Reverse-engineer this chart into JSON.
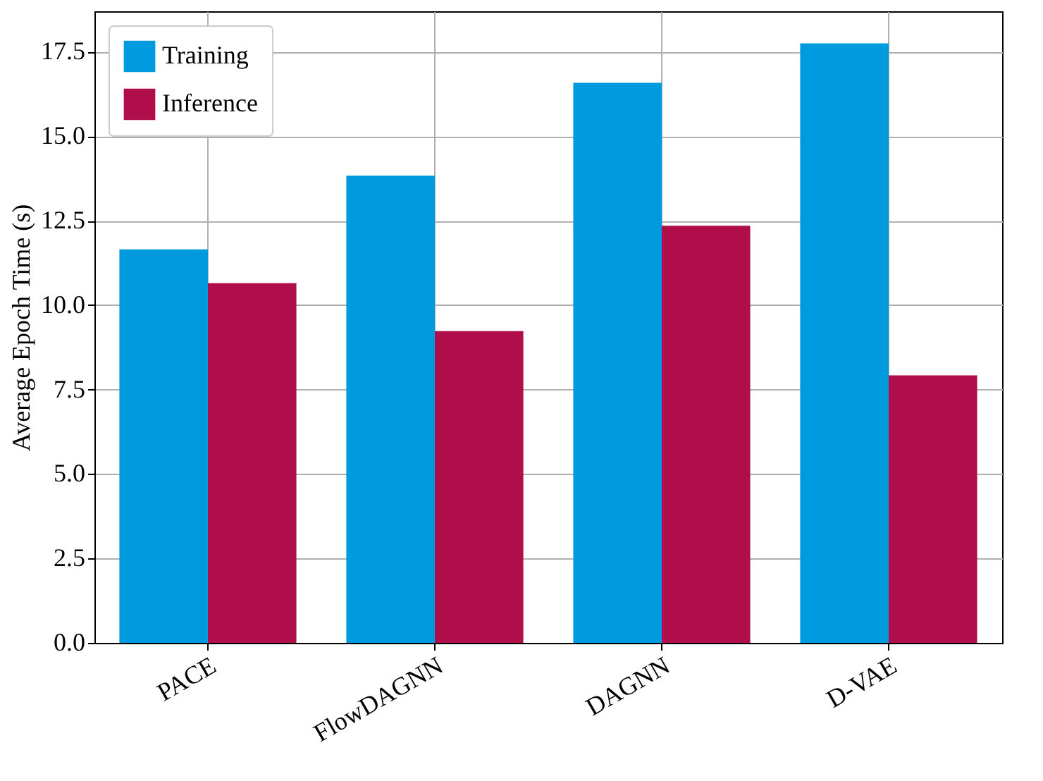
{
  "chart_data": {
    "type": "bar",
    "ylabel": "Average Epoch Time (s)",
    "categories": [
      "PACE",
      "FlowDAGNN",
      "DAGNN",
      "D-VAE"
    ],
    "series": [
      {
        "name": "Training",
        "color": "#009ade",
        "values": [
          11.65,
          13.83,
          16.58,
          17.75
        ]
      },
      {
        "name": "Inference",
        "color": "#af0e4a",
        "values": [
          10.65,
          9.23,
          12.35,
          7.92
        ]
      }
    ],
    "ylim": [
      0,
      18.7
    ],
    "yticks": [
      {
        "value": 0,
        "label": "0.0"
      },
      {
        "value": 2.5,
        "label": "2.5"
      },
      {
        "value": 5,
        "label": "5.0"
      },
      {
        "value": 7.5,
        "label": "7.5"
      },
      {
        "value": 10,
        "label": "10.0"
      },
      {
        "value": 12.5,
        "label": "12.5"
      },
      {
        "value": 15,
        "label": "15.0"
      },
      {
        "value": 17.5,
        "label": "17.5"
      }
    ],
    "grid": true,
    "legend": "top left"
  }
}
